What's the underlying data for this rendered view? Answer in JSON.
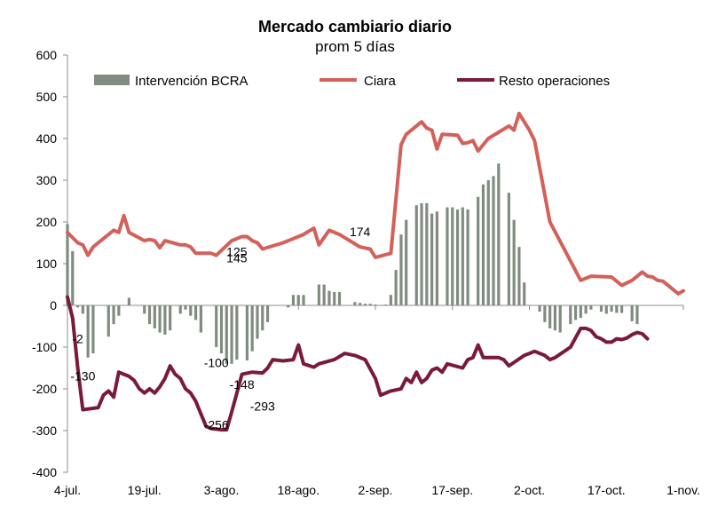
{
  "chart_data": {
    "type": "bar+line",
    "title": "Mercado cambiario diario",
    "subtitle": "prom 5 días",
    "ylim": [
      -400,
      600
    ],
    "yticks": [
      600,
      500,
      400,
      300,
      200,
      100,
      0,
      -100,
      -200,
      -300,
      -400
    ],
    "x_range": [
      0,
      120
    ],
    "x_ticks": [
      {
        "x": 0,
        "label": "4-jul."
      },
      {
        "x": 15,
        "label": "19-jul."
      },
      {
        "x": 30,
        "label": "3-ago."
      },
      {
        "x": 45,
        "label": "18-ago."
      },
      {
        "x": 60,
        "label": "2-sep."
      },
      {
        "x": 75,
        "label": "17-sep."
      },
      {
        "x": 90,
        "label": "2-oct."
      },
      {
        "x": 105,
        "label": "17-oct."
      },
      {
        "x": 120,
        "label": "1-nov."
      }
    ],
    "legend": [
      "Intervención BCRA",
      "Ciara",
      "Resto operaciones"
    ],
    "colors": {
      "bars": "#7f8c7f",
      "ciara": "#d4605a",
      "resto": "#7a1a3a",
      "axis": "#8c8c8c"
    },
    "series": [
      {
        "name": "Intervención BCRA",
        "kind": "bar",
        "points": [
          [
            0,
            195
          ],
          [
            1,
            130
          ],
          [
            2,
            -5
          ],
          [
            3,
            -20
          ],
          [
            4,
            -125
          ],
          [
            5,
            -115
          ],
          [
            8,
            -75
          ],
          [
            9,
            -45
          ],
          [
            10,
            -25
          ],
          [
            12,
            18
          ],
          [
            15,
            -20
          ],
          [
            16,
            -45
          ],
          [
            17,
            -55
          ],
          [
            18,
            -65
          ],
          [
            19,
            -70
          ],
          [
            20,
            -60
          ],
          [
            22,
            -20
          ],
          [
            23,
            -10
          ],
          [
            24,
            -25
          ],
          [
            25,
            -35
          ],
          [
            26,
            -65
          ],
          [
            29,
            -100
          ],
          [
            30,
            -115
          ],
          [
            31,
            -140
          ],
          [
            32,
            -140
          ],
          [
            33,
            -130
          ],
          [
            35,
            -132
          ],
          [
            36,
            -110
          ],
          [
            37,
            -80
          ],
          [
            38,
            -60
          ],
          [
            39,
            -40
          ],
          [
            43,
            -5
          ],
          [
            44,
            25
          ],
          [
            45,
            25
          ],
          [
            46,
            25
          ],
          [
            49,
            50
          ],
          [
            50,
            50
          ],
          [
            51,
            35
          ],
          [
            52,
            32
          ],
          [
            53,
            32
          ],
          [
            56,
            8
          ],
          [
            57,
            6
          ],
          [
            58,
            4
          ],
          [
            59,
            4
          ],
          [
            60,
            2
          ],
          [
            62,
            2
          ],
          [
            63,
            25
          ],
          [
            64,
            85
          ],
          [
            65,
            170
          ],
          [
            66,
            205
          ],
          [
            68,
            240
          ],
          [
            69,
            245
          ],
          [
            70,
            245
          ],
          [
            71,
            220
          ],
          [
            72,
            225
          ],
          [
            74,
            235
          ],
          [
            75,
            235
          ],
          [
            76,
            230
          ],
          [
            77,
            235
          ],
          [
            78,
            230
          ],
          [
            80,
            260
          ],
          [
            81,
            290
          ],
          [
            82,
            300
          ],
          [
            83,
            310
          ],
          [
            84,
            340
          ],
          [
            86,
            270
          ],
          [
            87,
            205
          ],
          [
            88,
            140
          ],
          [
            89,
            55
          ],
          [
            92,
            -15
          ],
          [
            93,
            -40
          ],
          [
            94,
            -55
          ],
          [
            95,
            -60
          ],
          [
            96,
            -65
          ],
          [
            98,
            -45
          ],
          [
            99,
            -35
          ],
          [
            100,
            -30
          ],
          [
            101,
            -20
          ],
          [
            102,
            -10
          ],
          [
            104,
            -15
          ],
          [
            105,
            -20
          ],
          [
            106,
            -15
          ],
          [
            107,
            -18
          ],
          [
            108,
            -18
          ],
          [
            110,
            -38
          ],
          [
            111,
            -45
          ]
        ]
      },
      {
        "name": "Ciara",
        "kind": "line",
        "points": [
          [
            0,
            175
          ],
          [
            2,
            150
          ],
          [
            3,
            145
          ],
          [
            4,
            120
          ],
          [
            5,
            140
          ],
          [
            9,
            180
          ],
          [
            10,
            175
          ],
          [
            11,
            215
          ],
          [
            12,
            175
          ],
          [
            15,
            155
          ],
          [
            16,
            158
          ],
          [
            17,
            155
          ],
          [
            18,
            138
          ],
          [
            19,
            155
          ],
          [
            22,
            145
          ],
          [
            23,
            145
          ],
          [
            24,
            140
          ],
          [
            25,
            125
          ],
          [
            28,
            125
          ],
          [
            29,
            120
          ],
          [
            32,
            155
          ],
          [
            34,
            165
          ],
          [
            35,
            165
          ],
          [
            36,
            155
          ],
          [
            37,
            150
          ],
          [
            38,
            135
          ],
          [
            42,
            150
          ],
          [
            44,
            160
          ],
          [
            46,
            170
          ],
          [
            48,
            185
          ],
          [
            49,
            145
          ],
          [
            51,
            180
          ],
          [
            53,
            170
          ],
          [
            57,
            140
          ],
          [
            59,
            135
          ],
          [
            60,
            115
          ],
          [
            63,
            125
          ],
          [
            65,
            385
          ],
          [
            66,
            410
          ],
          [
            69,
            440
          ],
          [
            70,
            425
          ],
          [
            71,
            420
          ],
          [
            72,
            375
          ],
          [
            73,
            410
          ],
          [
            76,
            408
          ],
          [
            77,
            388
          ],
          [
            78,
            390
          ],
          [
            79,
            395
          ],
          [
            80,
            370
          ],
          [
            82,
            400
          ],
          [
            86,
            430
          ],
          [
            87,
            420
          ],
          [
            88,
            460
          ],
          [
            90,
            420
          ],
          [
            91,
            395
          ],
          [
            94,
            200
          ],
          [
            100,
            60
          ],
          [
            102,
            70
          ],
          [
            106,
            68
          ],
          [
            108,
            48
          ],
          [
            110,
            60
          ],
          [
            112,
            80
          ],
          [
            113,
            70
          ],
          [
            114,
            68
          ],
          [
            115,
            60
          ],
          [
            116,
            58
          ],
          [
            119,
            28
          ],
          [
            120,
            35
          ]
        ]
      },
      {
        "name": "Resto operaciones",
        "kind": "line",
        "points": [
          [
            0,
            20
          ],
          [
            1,
            -30
          ],
          [
            2,
            -150
          ],
          [
            3,
            -250
          ],
          [
            6,
            -245
          ],
          [
            7,
            -215
          ],
          [
            8,
            -205
          ],
          [
            9,
            -220
          ],
          [
            10,
            -160
          ],
          [
            11,
            -165
          ],
          [
            12,
            -170
          ],
          [
            13,
            -180
          ],
          [
            14,
            -200
          ],
          [
            15,
            -210
          ],
          [
            16,
            -200
          ],
          [
            17,
            -210
          ],
          [
            18,
            -195
          ],
          [
            19,
            -175
          ],
          [
            20,
            -145
          ],
          [
            21,
            -165
          ],
          [
            22,
            -175
          ],
          [
            23,
            -200
          ],
          [
            24,
            -210
          ],
          [
            25,
            -230
          ],
          [
            26,
            -260
          ],
          [
            27,
            -290
          ],
          [
            28,
            -295
          ],
          [
            30,
            -298
          ],
          [
            31,
            -298
          ],
          [
            32,
            -255
          ],
          [
            33,
            -210
          ],
          [
            34,
            -165
          ],
          [
            36,
            -160
          ],
          [
            38,
            -162
          ],
          [
            39,
            -150
          ],
          [
            40,
            -130
          ],
          [
            42,
            -133
          ],
          [
            44,
            -130
          ],
          [
            45,
            -95
          ],
          [
            46,
            -140
          ],
          [
            48,
            -148
          ],
          [
            49,
            -140
          ],
          [
            52,
            -130
          ],
          [
            54,
            -115
          ],
          [
            56,
            -120
          ],
          [
            58,
            -130
          ],
          [
            60,
            -175
          ],
          [
            61,
            -215
          ],
          [
            63,
            -205
          ],
          [
            65,
            -200
          ],
          [
            66,
            -175
          ],
          [
            67,
            -185
          ],
          [
            68,
            -160
          ],
          [
            69,
            -185
          ],
          [
            70,
            -175
          ],
          [
            71,
            -155
          ],
          [
            72,
            -150
          ],
          [
            73,
            -160
          ],
          [
            74,
            -140
          ],
          [
            77,
            -150
          ],
          [
            78,
            -130
          ],
          [
            79,
            -125
          ],
          [
            80,
            -95
          ],
          [
            81,
            -125
          ],
          [
            84,
            -125
          ],
          [
            85,
            -130
          ],
          [
            86,
            -145
          ],
          [
            89,
            -120
          ],
          [
            90,
            -115
          ],
          [
            91,
            -110
          ],
          [
            93,
            -120
          ],
          [
            94,
            -130
          ],
          [
            95,
            -125
          ],
          [
            98,
            -100
          ],
          [
            100,
            -55
          ],
          [
            101,
            -55
          ],
          [
            102,
            -60
          ],
          [
            103,
            -75
          ],
          [
            104,
            -80
          ],
          [
            105,
            -88
          ],
          [
            106,
            -88
          ],
          [
            107,
            -80
          ],
          [
            108,
            -82
          ],
          [
            109,
            -78
          ],
          [
            110,
            -70
          ],
          [
            111,
            -65
          ],
          [
            112,
            -68
          ],
          [
            113,
            -80
          ]
        ]
      }
    ],
    "annotations": [
      {
        "x": 2,
        "y": -90,
        "text": "-2"
      },
      {
        "x": 3,
        "y": -180,
        "text": "-130"
      },
      {
        "x": 29,
        "y": -148,
        "text": "-100"
      },
      {
        "x": 29,
        "y": -297,
        "text": "-256"
      },
      {
        "x": 34,
        "y": -200,
        "text": "-148"
      },
      {
        "x": 38,
        "y": -252,
        "text": "-293"
      },
      {
        "x": 33,
        "y": 118,
        "text": "125"
      },
      {
        "x": 33,
        "y": 103,
        "text": "145"
      },
      {
        "x": 57,
        "y": 166,
        "text": "174"
      }
    ]
  }
}
